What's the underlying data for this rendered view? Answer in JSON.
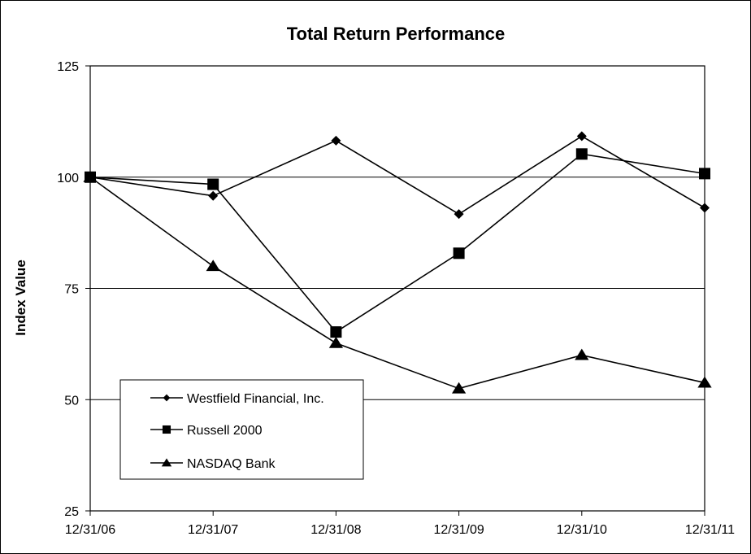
{
  "chart_data": {
    "type": "line",
    "title": "Total Return Performance",
    "xlabel": "",
    "ylabel": "Index Value",
    "categories": [
      "12/31/06",
      "12/31/07",
      "12/31/08",
      "12/31/09",
      "12/31/10",
      "12/31/11"
    ],
    "ylim": [
      25,
      125
    ],
    "yticks": [
      25,
      50,
      75,
      100,
      125
    ],
    "grid": "horizontal",
    "legend_placement": "bottom-left",
    "series": [
      {
        "name": "Westfield Financial, Inc.",
        "marker": "diamond",
        "values": [
          100,
          95.8,
          108.2,
          91.7,
          109.2,
          93.1
        ]
      },
      {
        "name": "Russell 2000",
        "marker": "square",
        "values": [
          100,
          98.4,
          65.2,
          82.9,
          105.2,
          100.8
        ]
      },
      {
        "name": "NASDAQ Bank",
        "marker": "triangle",
        "values": [
          100,
          80.0,
          62.7,
          52.5,
          60.0,
          53.8
        ]
      }
    ],
    "line_color": "#000000"
  }
}
